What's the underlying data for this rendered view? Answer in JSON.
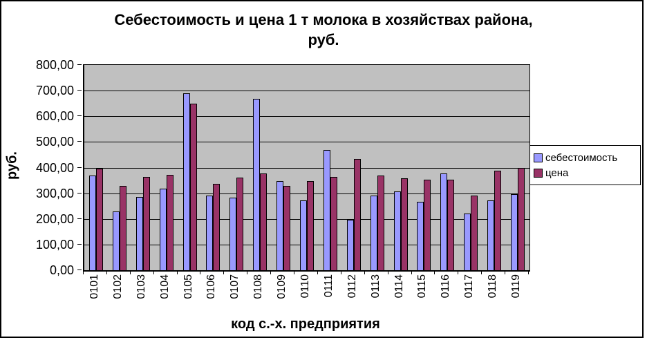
{
  "chart_data": {
    "type": "bar",
    "title": "Себестоимость и цена 1 т молока в хозяйствах района, руб.",
    "title_line1": "Себестоимость и цена 1 т молока в хозяйствах района,",
    "title_line2": "руб.",
    "xlabel": "код с.-х. предприятия",
    "ylabel": "руб.",
    "ylim": [
      0,
      800
    ],
    "ytick_step": 100,
    "ytick_labels": [
      "800,00",
      "700,00",
      "600,00",
      "500,00",
      "400,00",
      "300,00",
      "200,00",
      "100,00",
      "0,00"
    ],
    "grid": true,
    "legend_position": "right",
    "plot_bg_color": "#C0C0C0",
    "categories": [
      "0101",
      "0102",
      "0103",
      "0104",
      "0105",
      "0106",
      "0107",
      "0108",
      "0109",
      "0110",
      "0111",
      "0112",
      "0113",
      "0114",
      "0115",
      "0116",
      "0117",
      "0118",
      "0119"
    ],
    "series": [
      {
        "name": "себестоимость",
        "color": "#9999FF",
        "values": [
          370,
          230,
          286,
          318,
          689,
          290,
          284,
          668,
          348,
          273,
          470,
          196,
          291,
          307,
          268,
          378,
          220,
          271,
          296
        ]
      },
      {
        "name": "цена",
        "color": "#993366",
        "values": [
          397,
          330,
          365,
          371,
          648,
          336,
          361,
          377,
          330,
          348,
          365,
          433,
          370,
          357,
          352,
          353,
          290,
          387,
          399
        ]
      }
    ]
  }
}
